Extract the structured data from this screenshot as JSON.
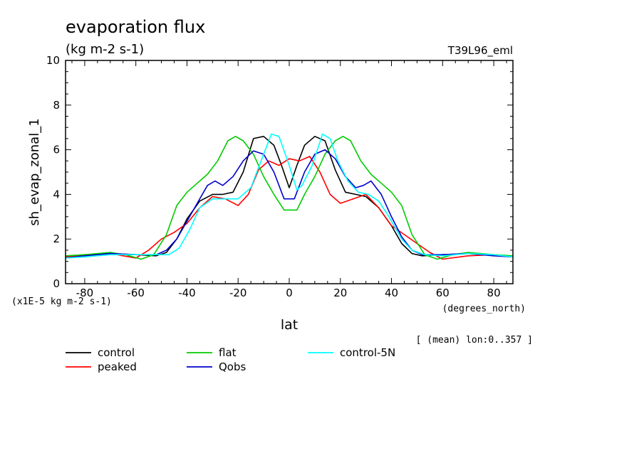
{
  "chart_data": {
    "type": "line",
    "title": "evaporation flux",
    "subtitle": "(kg m-2 s-1)",
    "run_label": "T39L96_eml",
    "ylabel": "sh_evap_zonal_1",
    "yunits": "(x1E-5 kg m-2 s-1)",
    "xlabel": "lat",
    "xunits": "(degrees_north)",
    "footnote": "[ (mean) lon:0..357 ]",
    "xlim": [
      -87.5,
      87.5
    ],
    "ylim": [
      0,
      10
    ],
    "x_ticks": [
      -80,
      -60,
      -40,
      -20,
      0,
      20,
      40,
      60,
      80
    ],
    "x_tick_labels": [
      "-80",
      "-60",
      "-40",
      "-20",
      "0",
      "20",
      "40",
      "60",
      "80"
    ],
    "y_ticks": [
      0,
      2,
      4,
      6,
      8,
      10
    ],
    "y_tick_labels": [
      "0",
      "2",
      "4",
      "6",
      "8",
      "10"
    ],
    "grid": false,
    "legend_position": "bottom",
    "series": [
      {
        "name": "control",
        "color": "#000000",
        "x": [
          -87.5,
          -80,
          -70,
          -60,
          -52,
          -48,
          -44,
          -40,
          -35,
          -30,
          -26,
          -22,
          -18,
          -14,
          -10,
          -6,
          -3,
          0,
          3,
          6,
          10,
          14,
          18,
          22,
          26,
          30,
          35,
          40,
          44,
          48,
          52,
          60,
          70,
          80,
          87.5
        ],
        "y": [
          1.2,
          1.25,
          1.35,
          1.3,
          1.25,
          1.4,
          2.0,
          2.9,
          3.7,
          4.0,
          4.0,
          4.1,
          5.0,
          6.5,
          6.6,
          6.2,
          5.3,
          4.3,
          5.3,
          6.2,
          6.6,
          6.4,
          5.1,
          4.1,
          4.0,
          3.9,
          3.4,
          2.6,
          1.8,
          1.35,
          1.25,
          1.3,
          1.35,
          1.3,
          1.2
        ]
      },
      {
        "name": "peaked",
        "color": "#ff0000",
        "x": [
          -87.5,
          -80,
          -70,
          -60,
          -55,
          -50,
          -45,
          -40,
          -35,
          -30,
          -25,
          -20,
          -16,
          -12,
          -8,
          -4,
          0,
          4,
          8,
          12,
          16,
          20,
          25,
          30,
          35,
          40,
          45,
          50,
          55,
          60,
          70,
          80,
          87.5
        ],
        "y": [
          1.2,
          1.3,
          1.35,
          1.15,
          1.5,
          2.0,
          2.3,
          2.7,
          3.4,
          3.9,
          3.8,
          3.5,
          4.0,
          5.1,
          5.5,
          5.3,
          5.6,
          5.5,
          5.7,
          5.0,
          4.0,
          3.6,
          3.8,
          4.0,
          3.4,
          2.6,
          2.2,
          1.8,
          1.4,
          1.1,
          1.25,
          1.3,
          1.2
        ]
      },
      {
        "name": "flat",
        "color": "#00cc00",
        "x": [
          -87.5,
          -80,
          -70,
          -64,
          -58,
          -53,
          -48,
          -44,
          -40,
          -36,
          -32,
          -28,
          -24,
          -21,
          -18,
          -14,
          -10,
          -6,
          -2,
          0,
          3,
          6,
          10,
          14,
          18,
          21,
          24,
          28,
          32,
          36,
          40,
          44,
          48,
          53,
          58,
          64,
          70,
          80,
          87.5
        ],
        "y": [
          1.25,
          1.3,
          1.4,
          1.3,
          1.1,
          1.3,
          2.2,
          3.5,
          4.1,
          4.5,
          4.9,
          5.5,
          6.4,
          6.6,
          6.4,
          5.8,
          4.8,
          4.0,
          3.3,
          3.3,
          3.3,
          4.0,
          4.8,
          5.8,
          6.4,
          6.6,
          6.4,
          5.5,
          4.9,
          4.5,
          4.1,
          3.5,
          2.2,
          1.3,
          1.1,
          1.3,
          1.4,
          1.3,
          1.25
        ]
      },
      {
        "name": "Qobs",
        "color": "#0000cc",
        "x": [
          -87.5,
          -80,
          -70,
          -60,
          -52,
          -48,
          -44,
          -40,
          -36,
          -32,
          -29,
          -26,
          -22,
          -18,
          -14,
          -10,
          -6,
          -2,
          0,
          2,
          6,
          10,
          14,
          18,
          22,
          26,
          29,
          32,
          36,
          40,
          44,
          48,
          52,
          60,
          70,
          80,
          87.5
        ],
        "y": [
          1.15,
          1.25,
          1.35,
          1.3,
          1.3,
          1.5,
          2.0,
          2.8,
          3.6,
          4.4,
          4.6,
          4.4,
          4.8,
          5.5,
          5.95,
          5.8,
          5.0,
          3.8,
          3.8,
          3.8,
          5.0,
          5.8,
          6.0,
          5.6,
          4.8,
          4.3,
          4.4,
          4.6,
          4.0,
          3.0,
          2.1,
          1.5,
          1.3,
          1.3,
          1.35,
          1.25,
          1.2
        ]
      },
      {
        "name": "control-5N",
        "color": "#00ffff",
        "x": [
          -87.5,
          -80,
          -70,
          -60,
          -52,
          -47,
          -43,
          -39,
          -35,
          -30,
          -25,
          -20,
          -15,
          -11,
          -7,
          -4,
          0,
          3,
          5,
          9,
          13,
          16,
          19,
          23,
          27,
          31,
          35,
          39,
          44,
          48,
          53,
          60,
          70,
          80,
          87.5
        ],
        "y": [
          1.15,
          1.2,
          1.3,
          1.3,
          1.3,
          1.3,
          1.6,
          2.4,
          3.4,
          3.8,
          3.8,
          3.8,
          4.3,
          5.5,
          6.7,
          6.6,
          5.3,
          4.2,
          4.4,
          5.3,
          6.7,
          6.5,
          5.5,
          4.6,
          4.1,
          4.0,
          3.7,
          3.0,
          2.0,
          1.5,
          1.3,
          1.25,
          1.35,
          1.3,
          1.2
        ]
      }
    ]
  }
}
